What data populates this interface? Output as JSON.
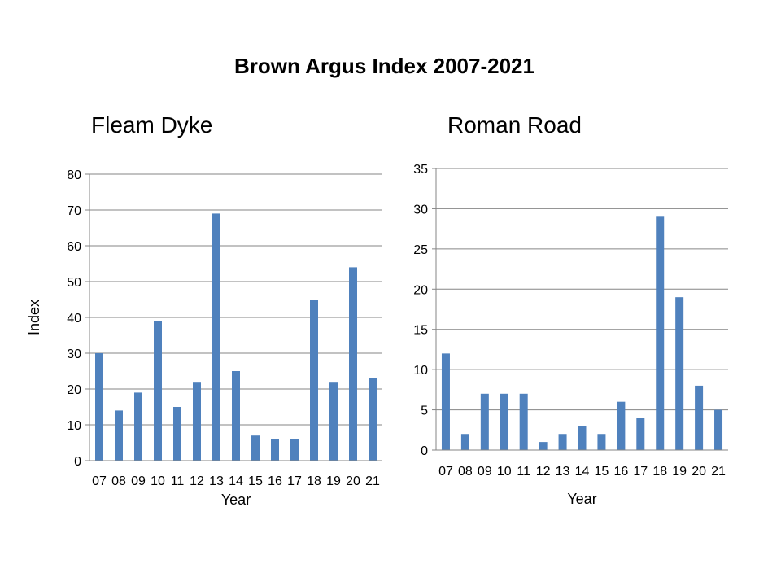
{
  "title": "Brown Argus Index 2007-2021",
  "colors": {
    "bar": "#4f81bd",
    "grid": "#868686",
    "axis": "#868686"
  },
  "chart_data": [
    {
      "type": "bar",
      "title": "Fleam Dyke",
      "xlabel": "Year",
      "ylabel": "Index",
      "ylim": [
        0,
        80
      ],
      "yticks": [
        "0",
        "10",
        "20",
        "30",
        "40",
        "50",
        "60",
        "70",
        "80"
      ],
      "grid": true,
      "categories": [
        "07",
        "08",
        "09",
        "10",
        "11",
        "12",
        "13",
        "14",
        "15",
        "16",
        "17",
        "18",
        "19",
        "20",
        "21"
      ],
      "values": [
        30,
        14,
        19,
        39,
        15,
        22,
        69,
        25,
        7,
        6,
        6,
        45,
        22,
        54,
        23
      ]
    },
    {
      "type": "bar",
      "title": "Roman Road",
      "xlabel": "Year",
      "ylabel": "",
      "ylim": [
        0,
        35
      ],
      "yticks": [
        "0",
        "5",
        "10",
        "15",
        "20",
        "25",
        "30",
        "35"
      ],
      "grid": true,
      "categories": [
        "07",
        "08",
        "09",
        "10",
        "11",
        "12",
        "13",
        "14",
        "15",
        "16",
        "17",
        "18",
        "19",
        "20",
        "21"
      ],
      "values": [
        12,
        2,
        7,
        7,
        7,
        1,
        2,
        3,
        2,
        6,
        4,
        29,
        19,
        8,
        5
      ]
    }
  ]
}
